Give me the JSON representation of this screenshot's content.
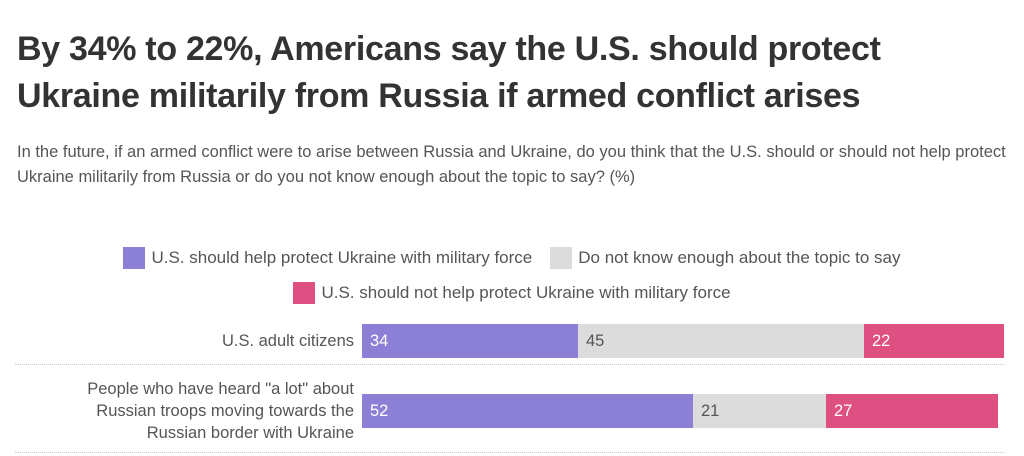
{
  "title": "By 34% to 22%, Americans say the U.S. should protect Ukraine militarily from Russia if armed conflict arises",
  "subtitle": "In the future, if an armed conflict were to arise between Russia and Ukraine, do you think that the U.S. should or should not help protect Ukraine militarily from Russia or do you not know enough about the topic to say? (%)",
  "legend": [
    {
      "label": "U.S. should help protect Ukraine with military force",
      "color": "#8C7FD6"
    },
    {
      "label": "Do not know enough about the topic to say",
      "color": "#DCDCDC"
    },
    {
      "label": "U.S. should not help protect Ukraine with military force",
      "color": "#DE4F82"
    }
  ],
  "chart_data": {
    "type": "bar",
    "orientation": "horizontal",
    "stacked": true,
    "categories": [
      "U.S. adult citizens",
      "People who have heard \"a lot\" about Russian troops moving towards the Russian border with Ukraine"
    ],
    "category_lines": [
      [
        "U.S. adult citizens"
      ],
      [
        "People who have heard \"a lot\" about",
        "Russian troops moving towards the",
        "Russian border with Ukraine"
      ]
    ],
    "series": [
      {
        "name": "U.S. should help protect Ukraine with military force",
        "values": [
          34,
          52
        ],
        "color": "#8C7FD6",
        "label_color": "#ffffff"
      },
      {
        "name": "Do not know enough about the topic to say",
        "values": [
          45,
          21
        ],
        "color": "#DCDCDC",
        "label_color": "#555555"
      },
      {
        "name": "U.S. should not help protect Ukraine with military force",
        "values": [
          22,
          27
        ],
        "color": "#DE4F82",
        "label_color": "#ffffff"
      }
    ],
    "xlim": [
      0,
      101
    ],
    "grid": false
  }
}
